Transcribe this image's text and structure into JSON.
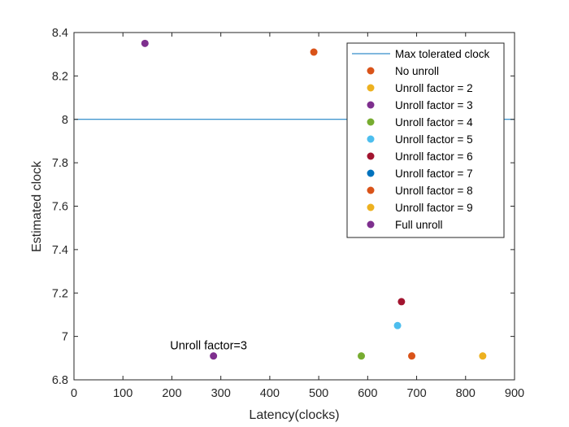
{
  "chart_data": {
    "type": "scatter",
    "xlabel": "Latency(clocks)",
    "ylabel": "Estimated clock",
    "xlim": [
      0,
      900
    ],
    "ylim": [
      6.8,
      8.4
    ],
    "xticks": [
      0,
      100,
      200,
      300,
      400,
      500,
      600,
      700,
      800,
      900
    ],
    "yticks": [
      6.8,
      7.0,
      7.2,
      7.4,
      7.6,
      7.8,
      8.0,
      8.2,
      8.4
    ],
    "xtick_labels": [
      "0",
      "100",
      "200",
      "300",
      "400",
      "500",
      "600",
      "700",
      "800",
      "900"
    ],
    "ytick_labels": [
      "6.8",
      "7",
      "7.2",
      "7.4",
      "7.6",
      "7.8",
      "8",
      "8.2",
      "8.4"
    ],
    "grid": false,
    "legend_position": "top-right",
    "reference_line": {
      "name": "Max tolerated clock",
      "y": 8.0,
      "color": "#0072BD"
    },
    "series": [
      {
        "name": "No unroll",
        "color": "#D95319",
        "x": [
          490
        ],
        "y": [
          8.31
        ]
      },
      {
        "name": "Unroll factor = 2",
        "color": "#EDB120",
        "x": [
          835
        ],
        "y": [
          6.91
        ]
      },
      {
        "name": "Unroll factor = 3",
        "color": "#7E2F8E",
        "x": [
          285
        ],
        "y": [
          6.91
        ]
      },
      {
        "name": "Unroll factor = 4",
        "color": "#77AC30",
        "x": [
          587
        ],
        "y": [
          6.91
        ]
      },
      {
        "name": "Unroll factor = 5",
        "color": "#4DBEEE",
        "x": [
          661
        ],
        "y": [
          7.05
        ]
      },
      {
        "name": "Unroll factor = 6",
        "color": "#A2142F",
        "x": [
          669
        ],
        "y": [
          7.16
        ]
      },
      {
        "name": "Unroll factor = 7",
        "color": "#0072BD",
        "x": [],
        "y": []
      },
      {
        "name": "Unroll factor = 8",
        "color": "#D95319",
        "x": [
          690
        ],
        "y": [
          6.91
        ]
      },
      {
        "name": "Unroll factor = 9",
        "color": "#EDB120",
        "x": [],
        "y": []
      },
      {
        "name": "Full unroll",
        "color": "#7E2F8E",
        "x": [
          145
        ],
        "y": [
          8.35
        ]
      }
    ],
    "annotations": [
      {
        "text": "Unroll factor=3",
        "x": 275,
        "y": 6.955
      }
    ]
  }
}
